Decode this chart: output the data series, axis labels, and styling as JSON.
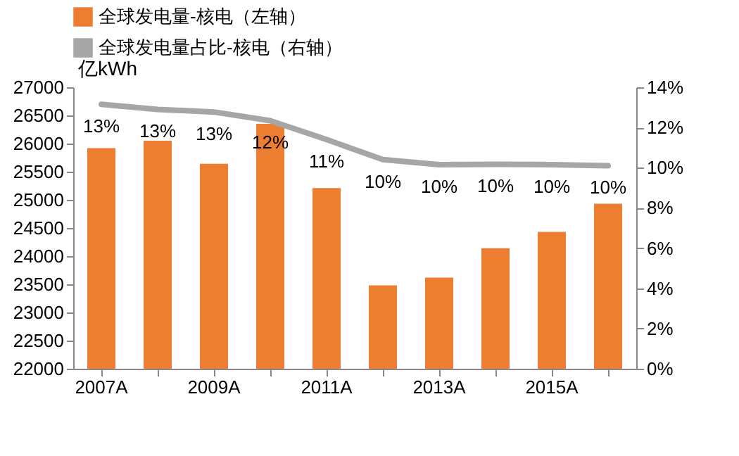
{
  "chart_data": {
    "type": "bar",
    "categories": [
      "2007A",
      null,
      "2009A",
      null,
      "2011A",
      null,
      "2013A",
      null,
      "2015A",
      null
    ],
    "ylabel": "亿kWh",
    "series": [
      {
        "name": "全球发电量-核电（左轴）",
        "color": "#ed7d31",
        "values": [
          25920,
          26050,
          25640,
          26350,
          25210,
          23480,
          23620,
          24140,
          24430,
          24930
        ]
      },
      {
        "name": "全球发电量占比-核电（右轴）",
        "type": "line",
        "axis": "y2",
        "color": "#a6a6a6",
        "values": [
          13.15,
          12.9,
          12.77,
          12.34,
          11.4,
          10.4,
          10.15,
          10.17,
          10.15,
          10.1
        ],
        "value_labels": [
          "13%",
          "13%",
          "13%",
          "12%",
          "11%",
          "10%",
          "10%",
          "10%",
          "10%",
          "10%"
        ]
      }
    ],
    "ylim": [
      22000,
      27000
    ],
    "yticks": [
      22000,
      22500,
      23000,
      23500,
      24000,
      24500,
      25000,
      25500,
      26000,
      26500,
      27000
    ],
    "y2lim": [
      0,
      14
    ],
    "y2ticks": [
      {
        "value": 0,
        "label": "0%"
      },
      {
        "value": 2,
        "label": "2%"
      },
      {
        "value": 4,
        "label": "4%"
      },
      {
        "value": 6,
        "label": "6%"
      },
      {
        "value": 8,
        "label": "8%"
      },
      {
        "value": 10,
        "label": "10%"
      },
      {
        "value": 12,
        "label": "12%"
      },
      {
        "value": 14,
        "label": "14%"
      }
    ],
    "legend": "top",
    "grid": false
  }
}
